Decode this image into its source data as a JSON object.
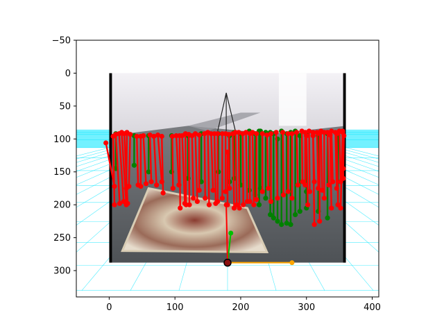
{
  "chart_data": {
    "type": "scatter",
    "title": "",
    "xlabel": "",
    "ylabel": "",
    "xlim": [
      -50,
      410
    ],
    "ylim": [
      340,
      -50
    ],
    "y_inverted": true,
    "grid": false,
    "x_ticks": [
      0,
      100,
      200,
      300,
      400
    ],
    "y_ticks": [
      -50,
      0,
      50,
      100,
      150,
      200,
      250,
      300
    ],
    "background_image": {
      "extent_x": [
        0,
        360
      ],
      "extent_y": [
        0,
        288
      ],
      "description_colors": {
        "frame": "#000000",
        "carpet": "#b8a48a",
        "floor": "#6a6e72",
        "wall": "#e8e6ea"
      }
    },
    "ground_grid": {
      "horizon_y": 90,
      "bottom_y": 288,
      "color": "#00e5ff"
    },
    "camera_origin": {
      "x": 180,
      "y": 288,
      "color": "#000000"
    },
    "axis_x_arrow": {
      "from": [
        180,
        288
      ],
      "to": [
        278,
        288
      ],
      "color": "#ffa500"
    },
    "axis_y_arrow": {
      "from": [
        180,
        288
      ],
      "to": [
        185,
        243
      ],
      "color": "#00c000"
    },
    "axis_z_arrow": {
      "from": [
        180,
        288
      ],
      "to": [
        178,
        200
      ],
      "color": "#ff0000"
    },
    "series": [
      {
        "color": "#008000",
        "segments": [
          [
            166,
            92,
            166,
            150
          ],
          [
            183,
            95,
            183,
            165
          ],
          [
            200,
            92,
            200,
            170
          ],
          [
            213,
            88,
            213,
            178
          ],
          [
            222,
            92,
            222,
            185
          ],
          [
            230,
            88,
            230,
            175
          ],
          [
            238,
            90,
            238,
            190
          ],
          [
            245,
            90,
            245,
            215
          ],
          [
            250,
            92,
            250,
            220
          ],
          [
            256,
            100,
            256,
            225
          ],
          [
            262,
            88,
            262,
            230
          ],
          [
            270,
            92,
            270,
            228
          ],
          [
            276,
            90,
            276,
            230
          ],
          [
            283,
            88,
            283,
            215
          ],
          [
            290,
            95,
            290,
            210
          ],
          [
            300,
            92,
            300,
            205
          ],
          [
            318,
            95,
            318,
            210
          ],
          [
            332,
            92,
            332,
            220
          ],
          [
            348,
            95,
            348,
            200
          ],
          [
            140,
            92,
            140,
            165
          ],
          [
            120,
            95,
            120,
            160
          ],
          [
            95,
            95,
            95,
            150
          ],
          [
            60,
            95,
            60,
            150
          ],
          [
            38,
            95,
            38,
            140
          ],
          [
            10,
            92,
            10,
            145
          ],
          [
            190,
            90,
            190,
            160
          ],
          [
            228,
            88,
            228,
            200
          ],
          [
            300,
            95,
            300,
            180
          ]
        ]
      },
      {
        "color": "#ff0000",
        "segments": [
          [
            -5,
            106,
            8,
            172
          ],
          [
            6,
            96,
            8,
            200
          ],
          [
            10,
            93,
            16,
            198
          ],
          [
            15,
            92,
            22,
            195
          ],
          [
            19,
            90,
            26,
            200
          ],
          [
            23,
            92,
            28,
            198
          ],
          [
            27,
            90,
            26,
            175
          ],
          [
            32,
            93,
            30,
            172
          ],
          [
            42,
            96,
            44,
            170
          ],
          [
            48,
            96,
            48,
            172
          ],
          [
            52,
            95,
            56,
            168
          ],
          [
            62,
            94,
            64,
            165
          ],
          [
            68,
            96,
            72,
            170
          ],
          [
            74,
            94,
            80,
            165
          ],
          [
            80,
            96,
            82,
            182
          ],
          [
            96,
            96,
            97,
            175
          ],
          [
            102,
            95,
            106,
            170
          ],
          [
            107,
            95,
            108,
            205
          ],
          [
            111,
            95,
            115,
            198
          ],
          [
            116,
            92,
            117,
            200
          ],
          [
            121,
            93,
            122,
            200
          ],
          [
            126,
            95,
            128,
            190
          ],
          [
            131,
            92,
            134,
            195
          ],
          [
            137,
            94,
            137,
            178
          ],
          [
            145,
            92,
            146,
            190
          ],
          [
            150,
            90,
            152,
            200
          ],
          [
            155,
            92,
            158,
            178
          ],
          [
            160,
            92,
            162,
            198
          ],
          [
            165,
            92,
            165,
            195
          ],
          [
            172,
            92,
            172,
            190
          ],
          [
            177,
            92,
            177,
            180
          ],
          [
            182,
            93,
            183,
            175
          ],
          [
            188,
            92,
            190,
            205
          ],
          [
            192,
            90,
            194,
            200
          ],
          [
            197,
            90,
            198,
            205
          ],
          [
            203,
            92,
            204,
            200
          ],
          [
            208,
            90,
            210,
            195
          ],
          [
            214,
            92,
            214,
            195
          ],
          [
            218,
            90,
            220,
            200
          ],
          [
            224,
            92,
            224,
            192
          ],
          [
            233,
            92,
            233,
            180
          ],
          [
            240,
            94,
            242,
            175
          ],
          [
            246,
            92,
            246,
            195
          ],
          [
            254,
            90,
            256,
            190
          ],
          [
            264,
            90,
            265,
            185
          ],
          [
            272,
            92,
            272,
            180
          ],
          [
            278,
            92,
            278,
            190
          ],
          [
            285,
            90,
            287,
            170
          ],
          [
            293,
            88,
            294,
            165
          ],
          [
            298,
            90,
            298,
            170
          ],
          [
            304,
            88,
            305,
            180
          ],
          [
            310,
            90,
            312,
            165
          ],
          [
            316,
            90,
            318,
            175
          ],
          [
            322,
            88,
            324,
            178
          ],
          [
            327,
            90,
            327,
            190
          ],
          [
            332,
            90,
            334,
            170
          ],
          [
            338,
            88,
            340,
            165
          ],
          [
            344,
            90,
            346,
            175
          ],
          [
            350,
            88,
            352,
            165
          ],
          [
            355,
            88,
            356,
            160
          ],
          [
            357,
            95,
            356,
            145
          ],
          [
            300,
            95,
            302,
            200
          ],
          [
            310,
            95,
            312,
            230
          ],
          [
            320,
            92,
            320,
            225
          ],
          [
            336,
            94,
            338,
            205
          ],
          [
            346,
            92,
            348,
            200
          ],
          [
            355,
            90,
            352,
            205
          ],
          [
            180,
            120,
            180,
            200
          ]
        ]
      }
    ]
  }
}
